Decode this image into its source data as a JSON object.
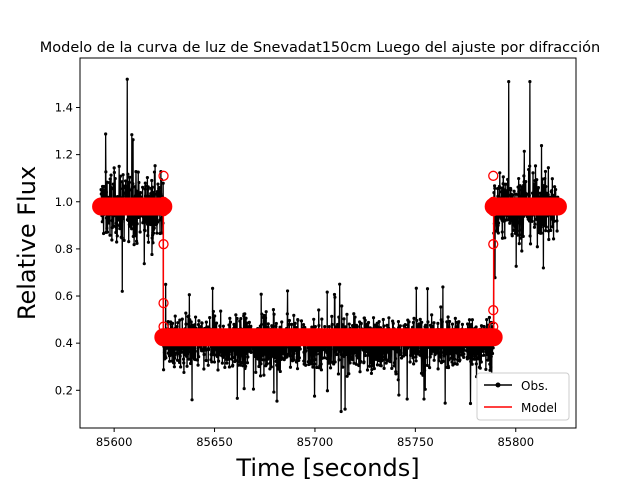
{
  "chart_data": {
    "type": "line",
    "title": "Modelo de la curva de luz de Snevadat150cm Luego del ajuste por difracción",
    "xlabel": "Time [seconds]",
    "ylabel": "Relative Flux",
    "xlim": [
      85583,
      85830
    ],
    "ylim": [
      0.04,
      1.61
    ],
    "x_ticks": [
      85600,
      85650,
      85700,
      85750,
      85800
    ],
    "y_ticks": [
      0.2,
      0.4,
      0.6,
      0.8,
      1.0,
      1.2,
      1.4
    ],
    "x_tick_labels": [
      "85600",
      "85650",
      "85700",
      "85750",
      "85800"
    ],
    "y_tick_labels": [
      "0.2",
      "0.4",
      "0.6",
      "0.8",
      "1.0",
      "1.2",
      "1.4"
    ],
    "grid": false,
    "legend_position": "lower-right",
    "series": [
      {
        "name": "Obs.",
        "color": "#000000",
        "marker": "dot",
        "x_range": [
          85593.5,
          85821
        ],
        "baseline_levels": [
          {
            "x": [
              85593.5,
              85624.5
            ],
            "mean": 0.98,
            "spread": 0.13
          },
          {
            "x": [
              85624.5,
              85789
            ],
            "mean": 0.4,
            "spread": 0.1
          },
          {
            "x": [
              85789,
              85821
            ],
            "mean": 0.98,
            "spread": 0.13
          }
        ],
        "extremes": [
          {
            "x": 85606.5,
            "y": 1.52
          },
          {
            "x": 85604.0,
            "y": 0.62
          },
          {
            "x": 85796.5,
            "y": 1.51
          },
          {
            "x": 85807.0,
            "y": 1.51
          },
          {
            "x": 85713.0,
            "y": 0.11
          },
          {
            "x": 85715.0,
            "y": 0.12
          }
        ]
      },
      {
        "name": "Model",
        "color": "#ff0000",
        "marker": "circle",
        "segments": [
          {
            "x": [
              85593.5,
              85624.5
            ],
            "y": 0.98
          },
          {
            "x": [
              85624.5,
              85789
            ],
            "y": 0.425
          },
          {
            "x": [
              85789,
              85821
            ],
            "y": 0.98
          }
        ],
        "transition_points": [
          {
            "x": 85624.6,
            "y": 1.11
          },
          {
            "x": 85624.6,
            "y": 1.0
          },
          {
            "x": 85624.6,
            "y": 0.96
          },
          {
            "x": 85624.6,
            "y": 0.82
          },
          {
            "x": 85624.6,
            "y": 0.57
          },
          {
            "x": 85624.6,
            "y": 0.47
          },
          {
            "x": 85788.8,
            "y": 1.11
          },
          {
            "x": 85788.8,
            "y": 1.0
          },
          {
            "x": 85788.8,
            "y": 0.96
          },
          {
            "x": 85788.8,
            "y": 0.82
          },
          {
            "x": 85788.8,
            "y": 0.54
          },
          {
            "x": 85788.8,
            "y": 0.47
          }
        ]
      }
    ]
  }
}
